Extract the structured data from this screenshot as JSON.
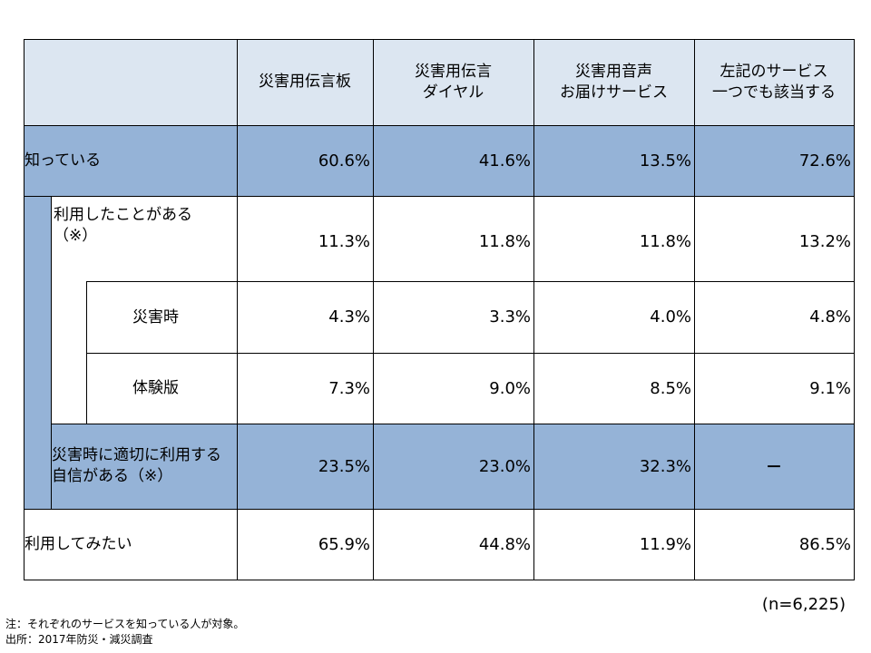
{
  "chart_data": {
    "type": "table",
    "columns": [
      "災害用伝言板",
      "災害用伝言\nダイヤル",
      "災害用音声\nお届けサービス",
      "左記のサービス\n一つでも該当する"
    ],
    "rows": [
      {
        "label": "知っている",
        "values": [
          "60.6%",
          "41.6%",
          "13.5%",
          "72.6%"
        ]
      },
      {
        "label": "利用したことがある\n（※）",
        "values": [
          "11.3%",
          "11.8%",
          "11.8%",
          "13.2%"
        ]
      },
      {
        "label": "災害時",
        "values": [
          "4.3%",
          "3.3%",
          "4.0%",
          "4.8%"
        ]
      },
      {
        "label": "体験版",
        "values": [
          "7.3%",
          "9.0%",
          "8.5%",
          "9.1%"
        ]
      },
      {
        "label": "災害時に適切に利用する自信がある（※）",
        "values": [
          "23.5%",
          "23.0%",
          "32.3%",
          "－"
        ]
      },
      {
        "label": "利用してみたい",
        "values": [
          "65.9%",
          "44.8%",
          "11.9%",
          "86.5%"
        ]
      }
    ]
  },
  "sample_size": "(n=6,225)",
  "notes": {
    "note_line": "注：それぞれのサービスを知っている人が対象。",
    "source_line": "出所：2017年防災・減災調査"
  },
  "colors": {
    "header_bg": "#dce6f1",
    "highlight_bg": "#95b3d7"
  }
}
